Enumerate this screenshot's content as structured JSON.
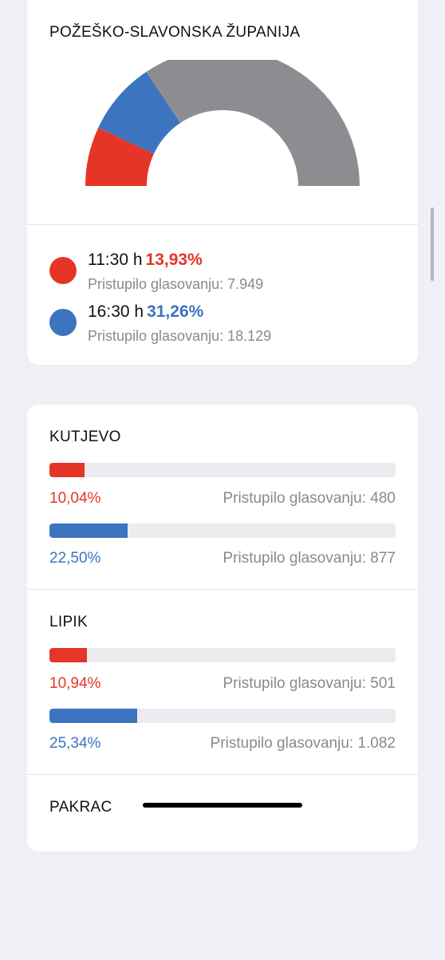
{
  "colors": {
    "red": "#e53526",
    "blue": "#3c74c0",
    "grey": "#8d8d91"
  },
  "county": {
    "title": "POŽEŠKO-SLAVONSKA ŽUPANIJA",
    "chart_data": {
      "type": "pie",
      "shape": "half-donut",
      "slices": [
        {
          "label": "11:30 h",
          "value": 13.93,
          "color": "#e53526"
        },
        {
          "label": "16:30 h",
          "value": 17.33,
          "color": "#3c74c0"
        },
        {
          "label": "",
          "value": 68.74,
          "color": "#8d8d91"
        }
      ]
    },
    "legend": [
      {
        "time": "11:30 h",
        "percent": "13,93%",
        "sub": "Pristupilo glasovanju: 7.949",
        "color": "#e53526"
      },
      {
        "time": "16:30 h",
        "percent": "31,26%",
        "sub": "Pristupilo glasovanju: 18.129",
        "color": "#3c74c0"
      }
    ]
  },
  "municipalities": [
    {
      "name": "KUTJEVO",
      "rows": [
        {
          "percent": "10,04%",
          "value": 10.04,
          "count": "Pristupilo glasovanju: 480",
          "color": "#e53526"
        },
        {
          "percent": "22,50%",
          "value": 22.5,
          "count": "Pristupilo glasovanju: 877",
          "color": "#3c74c0"
        }
      ]
    },
    {
      "name": "LIPIK",
      "rows": [
        {
          "percent": "10,94%",
          "value": 10.94,
          "count": "Pristupilo glasovanju: 501",
          "color": "#e53526"
        },
        {
          "percent": "25,34%",
          "value": 25.34,
          "count": "Pristupilo glasovanju: 1.082",
          "color": "#3c74c0"
        }
      ]
    },
    {
      "name": "PAKRAC",
      "rows": []
    }
  ]
}
